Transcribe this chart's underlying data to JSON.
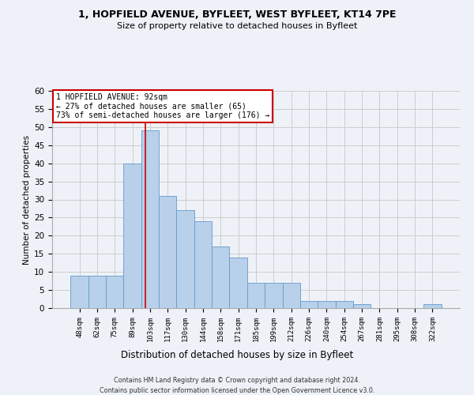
{
  "title1": "1, HOPFIELD AVENUE, BYFLEET, WEST BYFLEET, KT14 7PE",
  "title2": "Size of property relative to detached houses in Byfleet",
  "xlabel": "Distribution of detached houses by size in Byfleet",
  "ylabel": "Number of detached properties",
  "categories": [
    "48sqm",
    "62sqm",
    "75sqm",
    "89sqm",
    "103sqm",
    "117sqm",
    "130sqm",
    "144sqm",
    "158sqm",
    "171sqm",
    "185sqm",
    "199sqm",
    "212sqm",
    "226sqm",
    "240sqm",
    "254sqm",
    "267sqm",
    "281sqm",
    "295sqm",
    "308sqm",
    "322sqm"
  ],
  "values": [
    9,
    9,
    9,
    40,
    49,
    31,
    27,
    24,
    17,
    14,
    7,
    7,
    7,
    2,
    2,
    2,
    1,
    0,
    0,
    0,
    1
  ],
  "bar_color": "#b8d0ea",
  "bar_edge_color": "#6699cc",
  "grid_color": "#cccccc",
  "background_color": "#eef2f8",
  "annotation_box_color": "#ffffff",
  "annotation_box_edge": "#cc0000",
  "annotation_line_color": "#cc0000",
  "annotation_text_line1": "1 HOPFIELD AVENUE: 92sqm",
  "annotation_text_line2": "← 27% of detached houses are smaller (65)",
  "annotation_text_line3": "73% of semi-detached houses are larger (176) →",
  "property_line_x": 3.75,
  "ylim": [
    0,
    60
  ],
  "yticks": [
    0,
    5,
    10,
    15,
    20,
    25,
    30,
    35,
    40,
    45,
    50,
    55,
    60
  ],
  "footer_line1": "Contains HM Land Registry data © Crown copyright and database right 2024.",
  "footer_line2": "Contains public sector information licensed under the Open Government Licence v3.0."
}
